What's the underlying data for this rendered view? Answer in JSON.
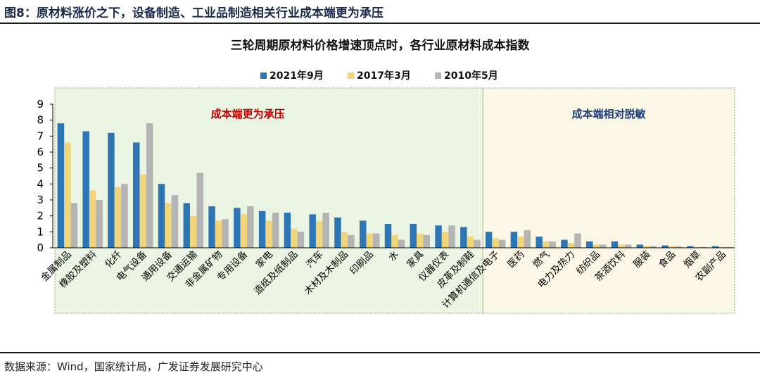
{
  "header": {
    "figure_title": "图8：原材料涨价之下，设备制造、工业品制造相关行业成本端更为承压"
  },
  "source": "数据来源：Wind，国家统计局，广发证券发展研究中心",
  "chart_data": {
    "type": "bar",
    "title": "三轮周期原材料价格增速顶点时，各行业原材料成本指数",
    "ylim": [
      0,
      9
    ],
    "yticks": [
      0,
      1,
      2,
      3,
      4,
      5,
      6,
      7,
      8,
      9
    ],
    "legend_position": "top-center",
    "grid": false,
    "categories": [
      "金属制品",
      "橡胶及塑料",
      "化纤",
      "电气设备",
      "通用设备",
      "交通运输",
      "非金属矿物",
      "专用设备",
      "家电",
      "造纸及纸制品",
      "汽车",
      "木材及木制品",
      "印刷品",
      "水",
      "家具",
      "仪器仪表",
      "皮革及制鞋",
      "计算机通信及电子",
      "医药",
      "燃气",
      "电力及热力",
      "纺织品",
      "茶酒饮料",
      "服装",
      "食品",
      "烟草",
      "农副产品"
    ],
    "series": [
      {
        "name": "2021年9月",
        "color": "#2e75b6",
        "values": [
          7.8,
          7.3,
          7.2,
          6.6,
          4.0,
          2.8,
          2.6,
          2.5,
          2.3,
          2.2,
          2.1,
          1.9,
          1.7,
          1.5,
          1.5,
          1.4,
          1.3,
          1.0,
          1.0,
          0.7,
          0.5,
          0.4,
          0.4,
          0.2,
          0.15,
          0.1,
          0.1
        ]
      },
      {
        "name": "2017年3月",
        "color": "#f0d57a",
        "values": [
          6.6,
          3.6,
          3.8,
          4.6,
          2.8,
          2.0,
          1.7,
          2.1,
          1.7,
          1.2,
          1.7,
          1.0,
          0.9,
          0.8,
          0.9,
          1.0,
          0.7,
          0.6,
          0.7,
          0.4,
          0.3,
          0.2,
          0.2,
          0.1,
          0.08,
          0.05,
          0.05
        ]
      },
      {
        "name": "2010年5月",
        "color": "#b4b4b4",
        "values": [
          2.8,
          3.0,
          4.0,
          7.8,
          3.3,
          4.7,
          1.8,
          2.6,
          2.2,
          1.0,
          2.2,
          0.8,
          0.9,
          0.5,
          0.8,
          1.4,
          0.5,
          0.5,
          1.1,
          0.4,
          0.9,
          0.2,
          0.2,
          0.1,
          0.08,
          0.05,
          0.05
        ]
      }
    ],
    "regions": [
      {
        "label": "成本端更为承压",
        "from": 0,
        "to": 16,
        "label_color": "#c00000",
        "fill": "#eaf5e4",
        "border": "#8aa36f"
      },
      {
        "label": "成本端相对脱敏",
        "from": 17,
        "to": 26,
        "label_color": "#1f3f7a",
        "fill": "#fbf7e6",
        "border": "#8aa36f"
      }
    ]
  }
}
